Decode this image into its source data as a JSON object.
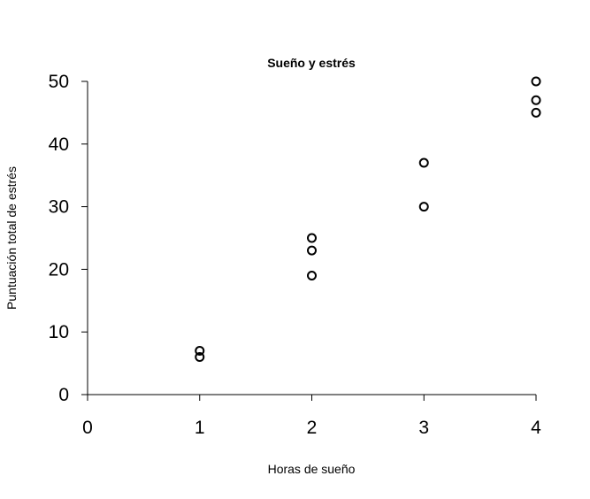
{
  "chart_data": {
    "type": "scatter",
    "title": "Sueño y estrés",
    "xlabel": "Horas de sueño",
    "ylabel": "Puntuación total de estrés",
    "xlim": [
      0,
      4
    ],
    "ylim": [
      0,
      50
    ],
    "xticks": [
      "0",
      "1",
      "2",
      "3",
      "4"
    ],
    "yticks": [
      "0",
      "10",
      "20",
      "30",
      "40",
      "50"
    ],
    "grid": false,
    "marker": "open-circle",
    "colors": {
      "foreground": "#000000",
      "background": "#ffffff"
    },
    "points": [
      {
        "x": 1,
        "y": 6
      },
      {
        "x": 1,
        "y": 7
      },
      {
        "x": 2,
        "y": 19
      },
      {
        "x": 2,
        "y": 23
      },
      {
        "x": 2,
        "y": 25
      },
      {
        "x": 3,
        "y": 30
      },
      {
        "x": 3,
        "y": 37
      },
      {
        "x": 4,
        "y": 45
      },
      {
        "x": 4,
        "y": 47
      },
      {
        "x": 4,
        "y": 50
      }
    ]
  }
}
